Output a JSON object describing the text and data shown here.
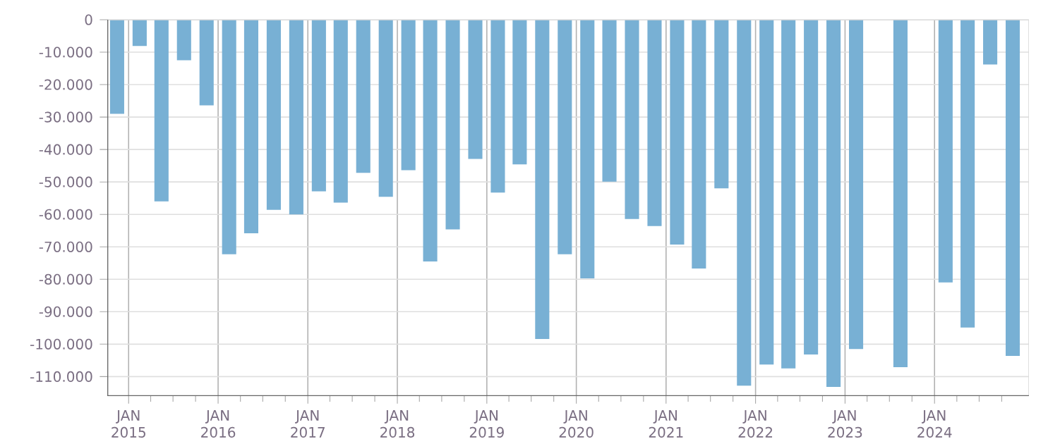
{
  "chart_data": {
    "type": "bar",
    "color": "#78b0d4",
    "grid": true,
    "x": [
      "2014-11-15",
      "2015-02-15",
      "2015-05-15",
      "2015-08-15",
      "2015-11-15",
      "2016-02-15",
      "2016-05-15",
      "2016-08-15",
      "2016-11-15",
      "2017-02-15",
      "2017-05-15",
      "2017-08-15",
      "2017-11-15",
      "2018-02-15",
      "2018-05-15",
      "2018-08-15",
      "2018-11-15",
      "2019-02-15",
      "2019-05-15",
      "2019-08-15",
      "2019-11-15",
      "2020-02-15",
      "2020-05-15",
      "2020-08-15",
      "2020-11-15",
      "2021-02-15",
      "2021-05-15",
      "2021-08-15",
      "2021-11-15",
      "2022-02-15",
      "2022-05-15",
      "2022-08-15",
      "2022-11-15",
      "2023-02-15",
      "2023-05-15",
      "2023-08-15",
      "2023-11-15",
      "2024-02-15",
      "2024-05-15",
      "2024-08-15",
      "2024-11-15"
    ],
    "values": [
      -29000,
      -8100,
      -56000,
      -12500,
      -26400,
      -72300,
      -65800,
      -58600,
      -60000,
      -52900,
      -56400,
      -47200,
      -54600,
      -46400,
      -74500,
      -64600,
      -42900,
      -53300,
      -44600,
      -98400,
      -72300,
      -79700,
      -49900,
      -61400,
      -63600,
      -69300,
      -76700,
      -52000,
      -112800,
      -106300,
      -107500,
      -103200,
      -113200,
      -101500,
      null,
      -107100,
      null,
      -81000,
      -94900,
      -13800,
      -103600
    ],
    "xlim": [
      "2014-10-06",
      "2025-01-20"
    ],
    "xticks": [
      {
        "value": "2015-01-01",
        "label": "JAN 2015"
      },
      {
        "value": "2015-04-01",
        "label": null
      },
      {
        "value": "2015-07-01",
        "label": null
      },
      {
        "value": "2015-10-01",
        "label": null
      },
      {
        "value": "2016-01-01",
        "label": "JAN 2016"
      },
      {
        "value": "2016-04-01",
        "label": null
      },
      {
        "value": "2016-07-01",
        "label": null
      },
      {
        "value": "2016-10-01",
        "label": null
      },
      {
        "value": "2017-01-01",
        "label": "JAN 2017"
      },
      {
        "value": "2017-04-01",
        "label": null
      },
      {
        "value": "2017-07-01",
        "label": null
      },
      {
        "value": "2017-10-01",
        "label": null
      },
      {
        "value": "2018-01-01",
        "label": "JAN 2018"
      },
      {
        "value": "2018-04-01",
        "label": null
      },
      {
        "value": "2018-07-01",
        "label": null
      },
      {
        "value": "2018-10-01",
        "label": null
      },
      {
        "value": "2019-01-01",
        "label": "JAN 2019"
      },
      {
        "value": "2019-04-01",
        "label": null
      },
      {
        "value": "2019-07-01",
        "label": null
      },
      {
        "value": "2019-10-01",
        "label": null
      },
      {
        "value": "2020-01-01",
        "label": "JAN 2020"
      },
      {
        "value": "2020-04-01",
        "label": null
      },
      {
        "value": "2020-07-01",
        "label": null
      },
      {
        "value": "2020-10-01",
        "label": null
      },
      {
        "value": "2021-01-01",
        "label": "JAN 2021"
      },
      {
        "value": "2021-04-01",
        "label": null
      },
      {
        "value": "2021-07-01",
        "label": null
      },
      {
        "value": "2021-10-01",
        "label": null
      },
      {
        "value": "2022-01-01",
        "label": "JAN 2022"
      },
      {
        "value": "2022-04-01",
        "label": null
      },
      {
        "value": "2022-07-01",
        "label": null
      },
      {
        "value": "2022-10-01",
        "label": null
      },
      {
        "value": "2023-01-01",
        "label": "JAN 2023"
      },
      {
        "value": "2023-04-01",
        "label": null
      },
      {
        "value": "2023-07-01",
        "label": null
      },
      {
        "value": "2023-10-01",
        "label": null
      },
      {
        "value": "2024-01-01",
        "label": "JAN 2024"
      },
      {
        "value": "2024-04-01",
        "label": null
      },
      {
        "value": "2024-07-01",
        "label": null
      },
      {
        "value": "2024-10-01",
        "label": null
      }
    ],
    "ylim": [
      -116000,
      0
    ],
    "yticks": [
      0,
      {
        "value": -10000,
        "label": "-10.000"
      },
      {
        "value": -20000,
        "label": "-20.000"
      },
      {
        "value": -30000,
        "label": "-30.000"
      },
      {
        "value": -40000,
        "label": "-40.000"
      },
      {
        "value": -50000,
        "label": "-50.000"
      },
      {
        "value": -60000,
        "label": "-60.000"
      },
      {
        "value": -70000,
        "label": "-70.000"
      },
      {
        "value": -80000,
        "label": "-80.000"
      },
      {
        "value": -90000,
        "label": "-90.000"
      },
      {
        "value": -100000,
        "label": "-100.000"
      },
      {
        "value": -110000,
        "label": "-110.000"
      }
    ]
  }
}
